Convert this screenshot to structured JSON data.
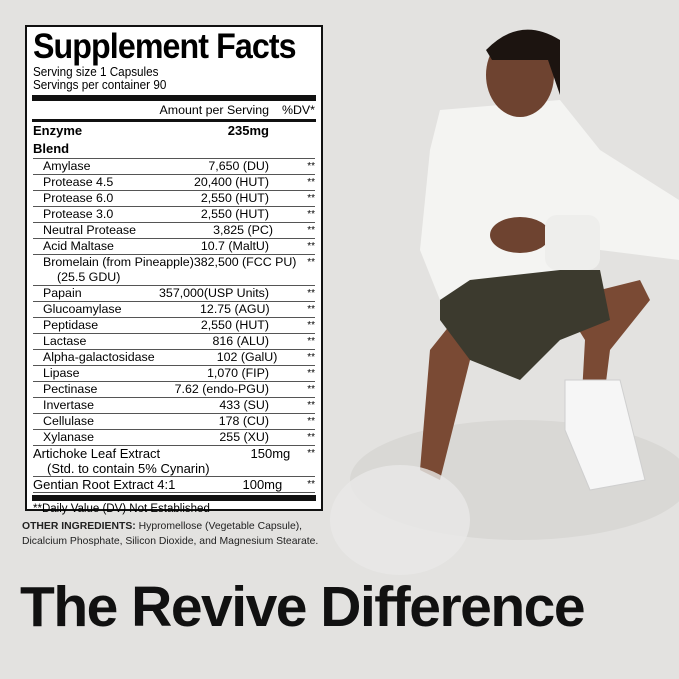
{
  "label": {
    "title": "Supplement Facts",
    "serving_size": "Serving size 1 Capsules",
    "servings_per_container": "Servings per container 90",
    "header_amount": "Amount per Serving",
    "header_dv": "%DV*",
    "blend": {
      "name": "Enzyme Blend",
      "amount": "235mg"
    },
    "enzymes": [
      {
        "name": "Amylase",
        "amount": "7,650 (DU)",
        "dv": "**"
      },
      {
        "name": "Protease 4.5",
        "amount": "20,400 (HUT)",
        "dv": "**"
      },
      {
        "name": "Protease 6.0",
        "amount": "2,550 (HUT)",
        "dv": "**"
      },
      {
        "name": "Protease 3.0",
        "amount": "2,550 (HUT)",
        "dv": "**"
      },
      {
        "name": "Neutral Protease",
        "amount": "3,825 (PC)",
        "dv": "**"
      },
      {
        "name": "Acid Maltase",
        "amount": "10.7 (MaltU)",
        "dv": "**"
      },
      {
        "name": "Bromelain (from Pineapple)",
        "sub": "(25.5 GDU)",
        "amount": "382,500 (FCC PU)",
        "dv": "**"
      },
      {
        "name": "Papain",
        "amount": "357,000(USP Units)",
        "dv": "**"
      },
      {
        "name": "Glucoamylase",
        "amount": "12.75 (AGU)",
        "dv": "**"
      },
      {
        "name": "Peptidase",
        "amount": "2,550 (HUT)",
        "dv": "**"
      },
      {
        "name": "Lactase",
        "amount": "816 (ALU)",
        "dv": "**"
      },
      {
        "name": "Alpha-galactosidase",
        "amount": "102 (GalU)",
        "dv": "**"
      },
      {
        "name": "Lipase",
        "amount": "1,070 (FIP)",
        "dv": "**"
      },
      {
        "name": "Pectinase",
        "amount": "7.62 (endo-PGU)",
        "dv": "**"
      },
      {
        "name": "Invertase",
        "amount": "433 (SU)",
        "dv": "**"
      },
      {
        "name": "Cellulase",
        "amount": "178 (CU)",
        "dv": "**"
      },
      {
        "name": "Xylanase",
        "amount": "255 (XU)",
        "dv": "**"
      }
    ],
    "others": [
      {
        "name": "Artichoke Leaf Extract",
        "sub": "(Std. to contain 5% Cynarin)",
        "amount": "150mg",
        "dv": "**"
      },
      {
        "name": "Gentian Root Extract 4:1",
        "amount": "100mg",
        "dv": "**"
      }
    ],
    "footnote": "**Daily Value (DV) Not Established"
  },
  "other_ingredients": {
    "label": "OTHER INGREDIENTS:",
    "line1": " Hypromellose (Vegetable Capsule),",
    "line2": "Dicalcium Phosphate, Silicon Dioxide, and Magnesium Stearate."
  },
  "headline": "The Revive Difference"
}
